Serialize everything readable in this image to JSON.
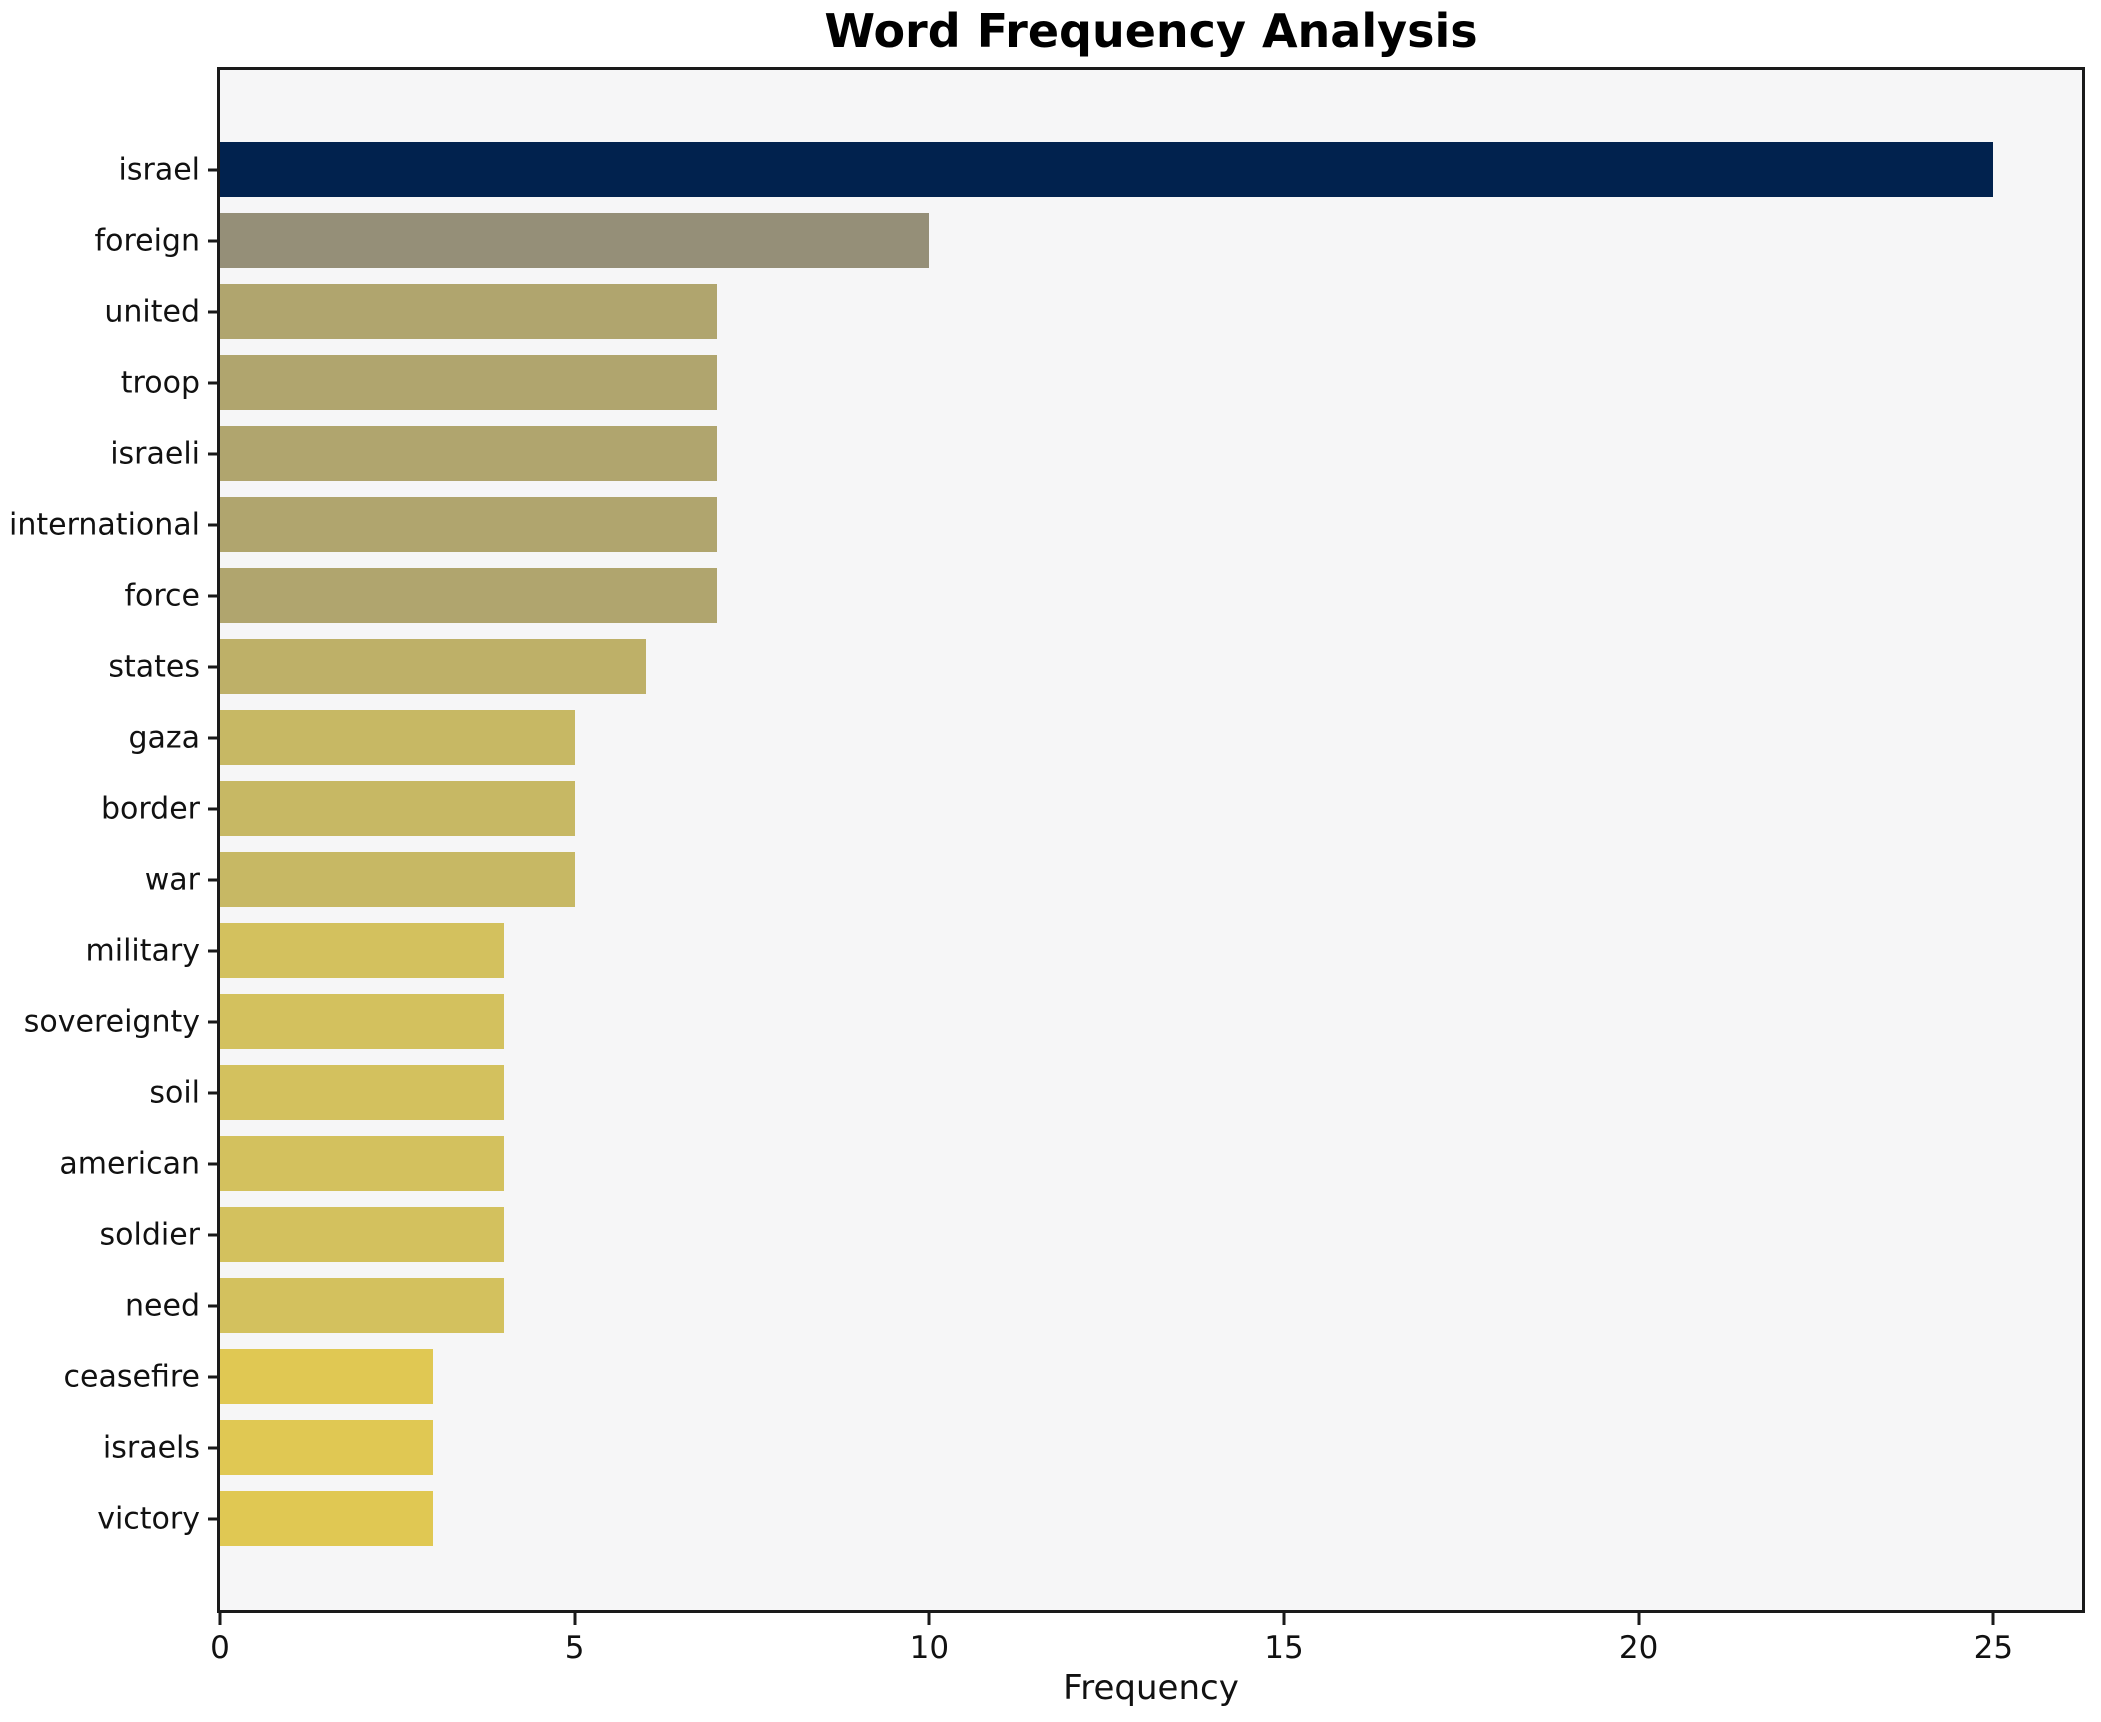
{
  "chart_data": {
    "type": "bar",
    "orientation": "horizontal",
    "title": "Word Frequency Analysis",
    "xlabel": "Frequency",
    "ylabel": "",
    "categories": [
      "israel",
      "foreign",
      "united",
      "troop",
      "israeli",
      "international",
      "force",
      "states",
      "gaza",
      "border",
      "war",
      "military",
      "sovereignty",
      "soil",
      "american",
      "soldier",
      "need",
      "ceasefire",
      "israels",
      "victory"
    ],
    "values": [
      25,
      10,
      7,
      7,
      7,
      7,
      7,
      6,
      5,
      5,
      5,
      4,
      4,
      4,
      4,
      4,
      4,
      3,
      3,
      3
    ],
    "bar_colors": [
      "#01224e",
      "#958f78",
      "#b0a56e",
      "#b0a56e",
      "#b0a56e",
      "#b0a56e",
      "#b0a56e",
      "#beb068",
      "#c7b864",
      "#c7b864",
      "#c7b864",
      "#d3c15e",
      "#d3c15e",
      "#d3c15e",
      "#d3c15e",
      "#d3c15e",
      "#d3c15e",
      "#e0c853",
      "#e0c853",
      "#e0c853"
    ],
    "xticks": [
      0,
      5,
      10,
      15,
      20,
      25
    ],
    "xlim": [
      0,
      26.25
    ],
    "grid": false,
    "legend": null,
    "plot_background": "#f6f6f7",
    "figure_background": "#ffffff"
  }
}
